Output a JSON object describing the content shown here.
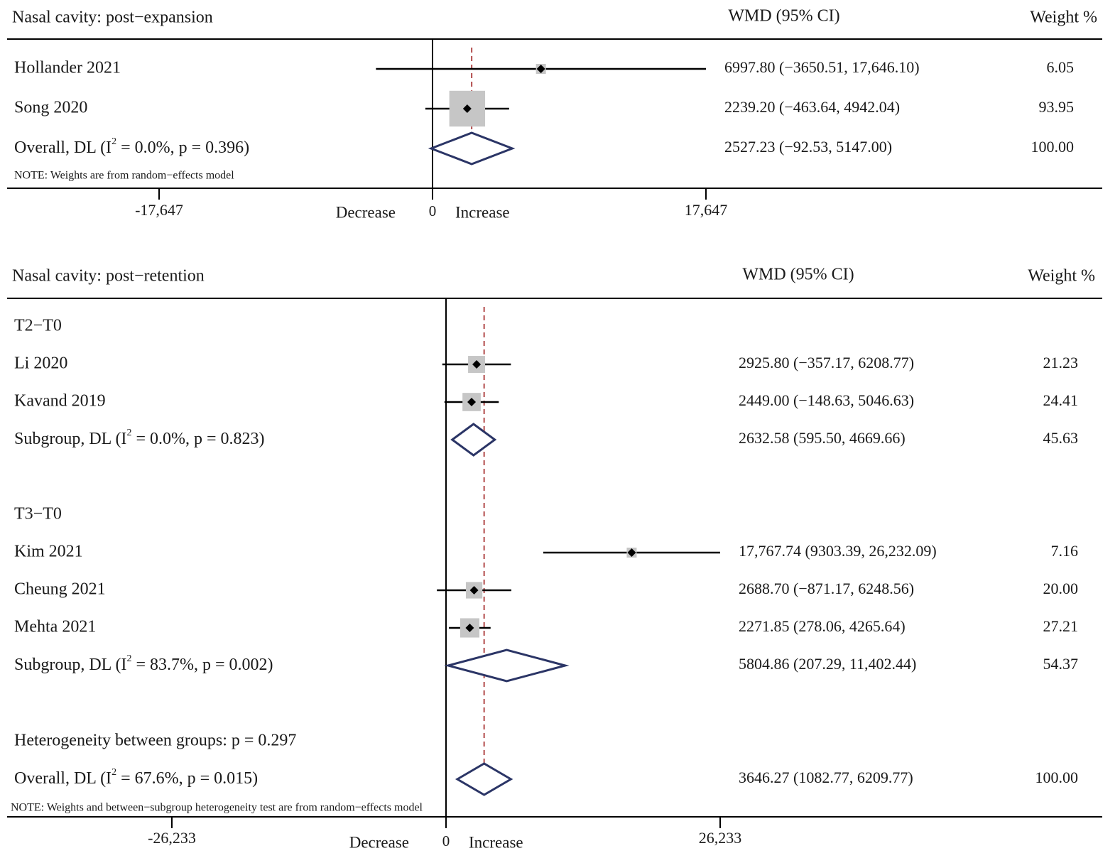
{
  "chart_data": [
    {
      "type": "forest",
      "title": "Nasal cavity: post−expansion",
      "col_effect_header": "WMD (95% CI)",
      "col_weight_header": "Weight %",
      "xlim": [
        -17647,
        17647
      ],
      "x_ticks": [
        {
          "value": -17647,
          "label": "-17,647"
        },
        {
          "value": 0,
          "label": "0"
        },
        {
          "value": 17647,
          "label": "17,647"
        }
      ],
      "reference_line": 2527.23,
      "left_direction_label": "Decrease",
      "right_direction_label": "Increase",
      "note": "NOTE: Weights are from random−effects model",
      "rows": [
        {
          "kind": "study",
          "label": "Hollander 2021",
          "est": 6997.8,
          "lo": -3650.51,
          "hi": 17646.1,
          "weight": 6.05,
          "effect_text": "6997.80 (−3650.51, 17,646.10)",
          "weight_text": "6.05"
        },
        {
          "kind": "study",
          "label": "Song 2020",
          "est": 2239.2,
          "lo": -463.64,
          "hi": 4942.04,
          "weight": 93.95,
          "effect_text": "2239.20 (−463.64, 4942.04)",
          "weight_text": "93.95"
        },
        {
          "kind": "overall",
          "label_main": "Overall, DL (I",
          "label_sup": "2",
          "label_rest": " = 0.0%, p = 0.396)",
          "est": 2527.23,
          "lo": -92.53,
          "hi": 5147.0,
          "effect_text": "2527.23 (−92.53, 5147.00)",
          "weight_text": "100.00"
        }
      ]
    },
    {
      "type": "forest",
      "title": "Nasal cavity: post−retention",
      "col_effect_header": "WMD (95% CI)",
      "col_weight_header": "Weight %",
      "xlim": [
        -26233,
        26233
      ],
      "x_ticks": [
        {
          "value": -26233,
          "label": "-26,233"
        },
        {
          "value": 0,
          "label": "0"
        },
        {
          "value": 26233,
          "label": "26,233"
        }
      ],
      "reference_line": 3646.27,
      "left_direction_label": "Decrease",
      "right_direction_label": "Increase",
      "note": "NOTE: Weights and between−subgroup heterogeneity test are from random−effects model",
      "rows": [
        {
          "kind": "group",
          "label": "T2−T0"
        },
        {
          "kind": "study",
          "label": "Li 2020",
          "est": 2925.8,
          "lo": -357.17,
          "hi": 6208.77,
          "weight": 21.23,
          "effect_text": "2925.80 (−357.17, 6208.77)",
          "weight_text": "21.23"
        },
        {
          "kind": "study",
          "label": "Kavand 2019",
          "est": 2449.0,
          "lo": -148.63,
          "hi": 5046.63,
          "weight": 24.41,
          "effect_text": "2449.00 (−148.63, 5046.63)",
          "weight_text": "24.41"
        },
        {
          "kind": "subgroup",
          "label_main": "Subgroup, DL (I",
          "label_sup": "2",
          "label_rest": " = 0.0%, p = 0.823)",
          "est": 2632.58,
          "lo": 595.5,
          "hi": 4669.66,
          "effect_text": "2632.58 (595.50, 4669.66)",
          "weight_text": "45.63"
        },
        {
          "kind": "group",
          "label": "T3−T0"
        },
        {
          "kind": "study",
          "label": "Kim 2021",
          "est": 17767.74,
          "lo": 9303.39,
          "hi": 26232.09,
          "weight": 7.16,
          "effect_text": "17,767.74 (9303.39, 26,232.09)",
          "weight_text": "7.16"
        },
        {
          "kind": "study",
          "label": "Cheung 2021",
          "est": 2688.7,
          "lo": -871.17,
          "hi": 6248.56,
          "weight": 20.0,
          "effect_text": "2688.70 (−871.17, 6248.56)",
          "weight_text": "20.00"
        },
        {
          "kind": "study",
          "label": "Mehta 2021",
          "est": 2271.85,
          "lo": 278.06,
          "hi": 4265.64,
          "weight": 27.21,
          "effect_text": "2271.85 (278.06, 4265.64)",
          "weight_text": "27.21"
        },
        {
          "kind": "subgroup",
          "label_main": "Subgroup, DL (I",
          "label_sup": "2",
          "label_rest": " = 83.7%, p = 0.002)",
          "est": 5804.86,
          "lo": 207.29,
          "hi": 11402.44,
          "effect_text": "5804.86 (207.29, 11,402.44)",
          "weight_text": "54.37"
        },
        {
          "kind": "text",
          "label": "Heterogeneity between groups: p = 0.297"
        },
        {
          "kind": "overall",
          "label_main": "Overall, DL (I",
          "label_sup": "2",
          "label_rest": " = 67.6%, p = 0.015)",
          "est": 3646.27,
          "lo": 1082.77,
          "hi": 6209.77,
          "effect_text": "3646.27 (1082.77, 6209.77)",
          "weight_text": "100.00"
        }
      ]
    }
  ],
  "colors": {
    "text": "#1a1a1a",
    "axis": "#000000",
    "box": "#c6c6c6",
    "diamond": "#2b3566",
    "reference": "#b24a4a"
  }
}
